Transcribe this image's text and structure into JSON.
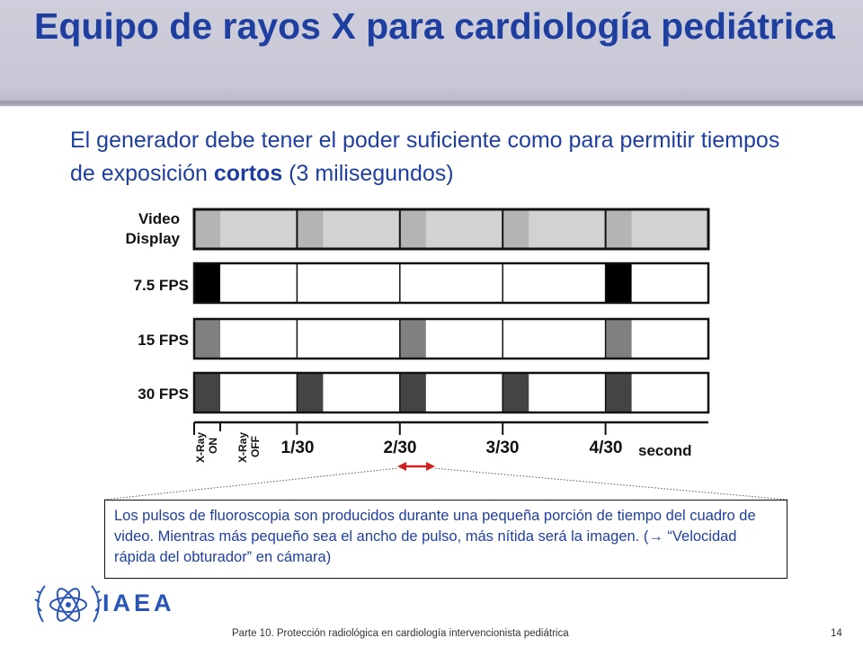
{
  "slide": {
    "title": "Equipo de rayos X para cardiología pediátrica",
    "subtitle_part1": "El generador debe tener el poder suficiente como para permitir tiempos de exposición ",
    "subtitle_bold": "cortos",
    "subtitle_part2": " (3 milisegundos)",
    "callout_text_1": "Los pulsos de fluoroscopia son producidos durante una pequeña porción de tiempo del cuadro de video. Mientras más pequeño sea el ancho de pulso, más nítida será la imagen. (",
    "callout_arrow_glyph": "→",
    "callout_text_2": " “Velocidad rápida del obturador” en cámara)",
    "footer": "Parte 10. Protección radiológica en cardiología intervencionista pediátrica",
    "page_number": "14",
    "logo_text": "IAEA",
    "colors": {
      "title": "#1f3fa0",
      "accent_arrow": "#cc2222",
      "logo": "#2a55b8"
    }
  },
  "timing_diagram": {
    "video_label_line1": "Video",
    "video_label_line2": "Display",
    "rows": [
      {
        "label": "7.5 FPS",
        "pulse_frames": [
          0,
          4
        ],
        "pulse_color": "#000000"
      },
      {
        "label": "15 FPS",
        "pulse_frames": [
          0,
          2,
          4
        ],
        "pulse_color": "#808080"
      },
      {
        "label": "30 FPS",
        "pulse_frames": [
          0,
          1,
          2,
          3,
          4
        ],
        "pulse_color": "#444444"
      }
    ],
    "xray_on_label_1": "X-Ray",
    "xray_on_label_2": "ON",
    "xray_off_label_1": "X-Ray",
    "xray_off_label_2": "OFF",
    "tick_labels": [
      "1/30",
      "2/30",
      "3/30",
      "4/30"
    ],
    "unit_label": "second"
  }
}
